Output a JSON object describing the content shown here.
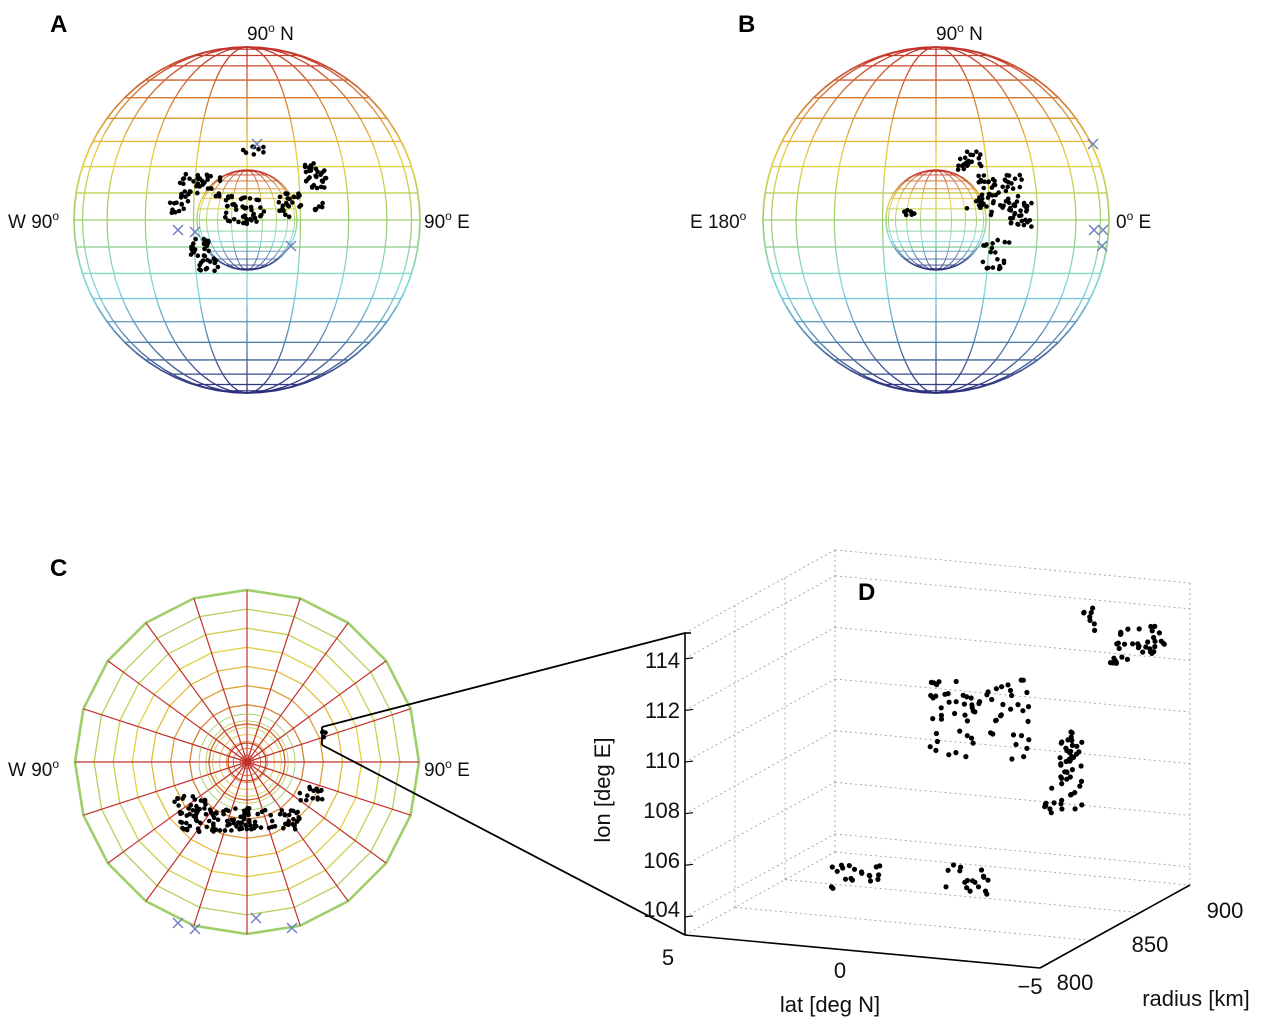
{
  "panels": {
    "A": {
      "label": "A",
      "north": "90",
      "north_sup": "o",
      "north_suffix": " N",
      "west": "W 90",
      "west_sup": "o",
      "east": "90",
      "east_sup": "o",
      "east_suffix": " E"
    },
    "B": {
      "label": "B",
      "north": "90",
      "north_sup": "o",
      "north_suffix": " N",
      "west": "E 180",
      "west_sup": "o",
      "east": "0",
      "east_sup": "o",
      "east_suffix": " E"
    },
    "C": {
      "label": "C",
      "west": "W 90",
      "west_sup": "o",
      "east": "90",
      "east_sup": "o",
      "east_suffix": " E"
    },
    "D": {
      "label": "D",
      "ylabel": "lon [deg E]",
      "xlabel": "lat [deg N]",
      "zlabel": "radius [km]",
      "lon_ticks": [
        "104",
        "106",
        "108",
        "110",
        "112",
        "114"
      ],
      "lat_ticks": [
        "5",
        "0",
        "−5"
      ],
      "radius_ticks": [
        "800",
        "850",
        "900"
      ]
    }
  },
  "colors": {
    "north_pole": "#c0302a",
    "mid_north": "#e8d040",
    "equator": "#9fcf6a",
    "mid_south": "#7fd8e0",
    "south_pole": "#2a2c7a",
    "markers": "#7080c0",
    "points": "#000000"
  }
}
